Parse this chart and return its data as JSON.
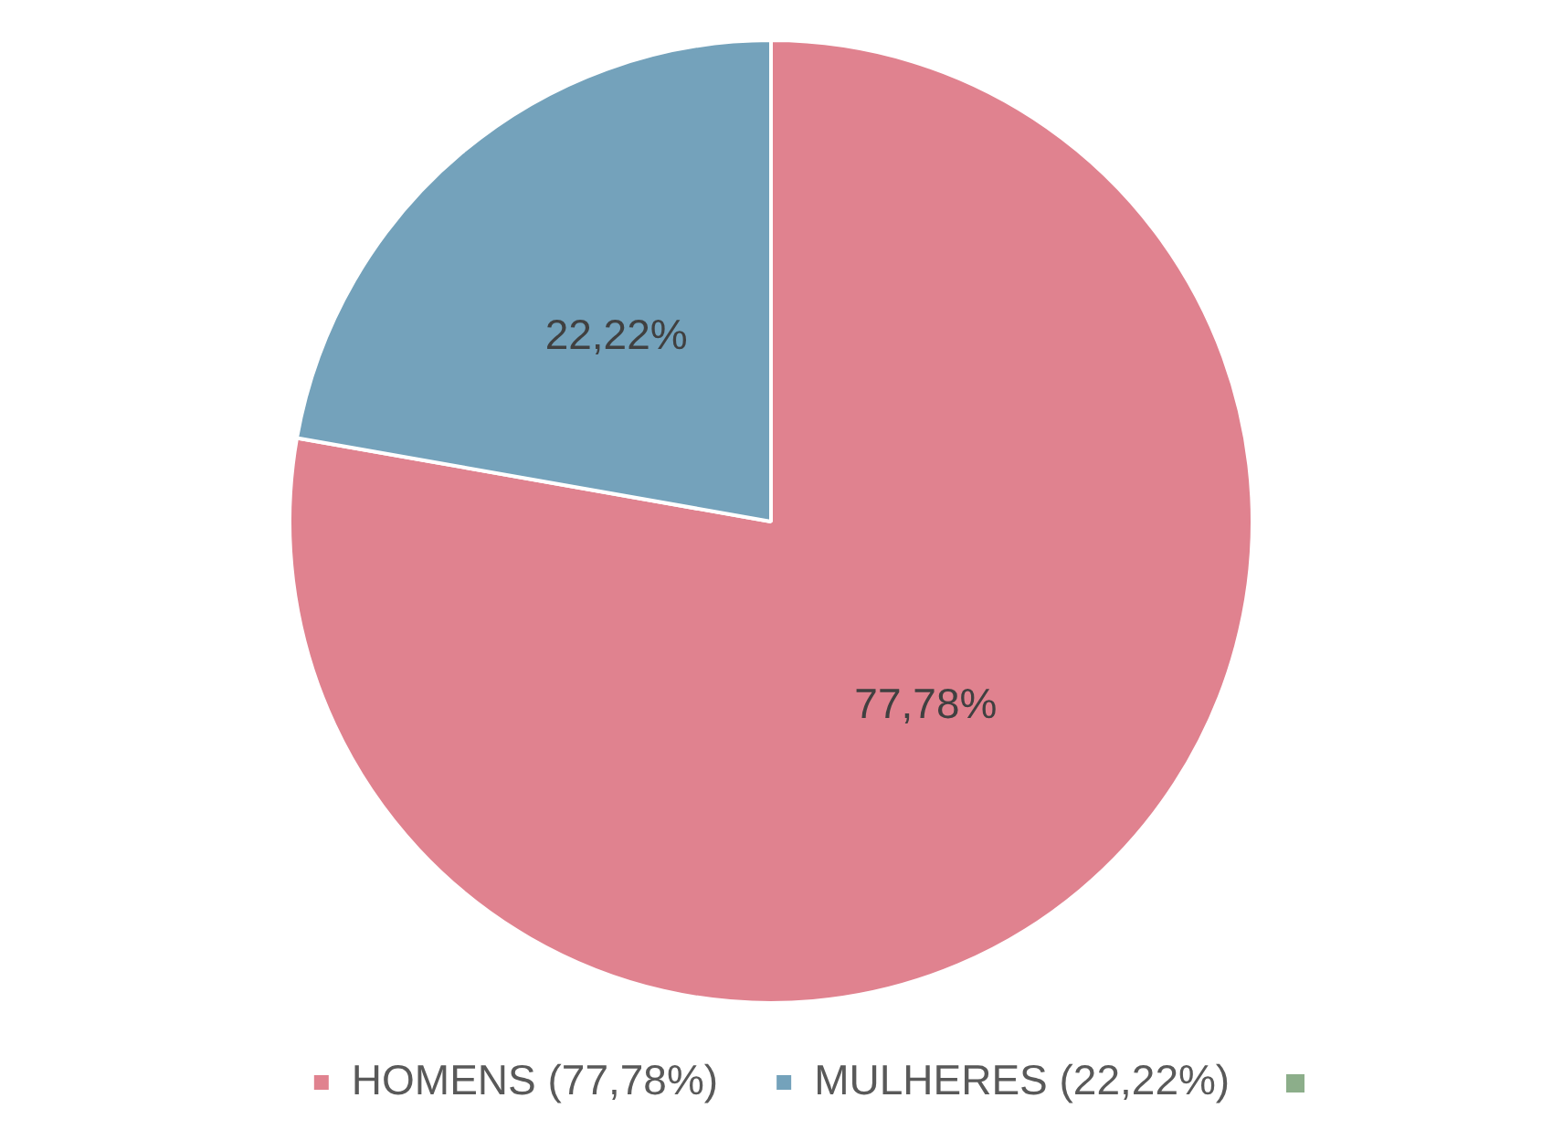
{
  "chart_data": {
    "type": "pie",
    "categories": [
      "HOMENS (77,78%)",
      "MULHERES (22,22%)"
    ],
    "values": [
      77.78,
      22.22
    ],
    "colors": [
      "#e0828f",
      "#74a2bb"
    ],
    "value_labels": [
      "77,78%",
      "22,22%"
    ],
    "legend": "bottom"
  }
}
